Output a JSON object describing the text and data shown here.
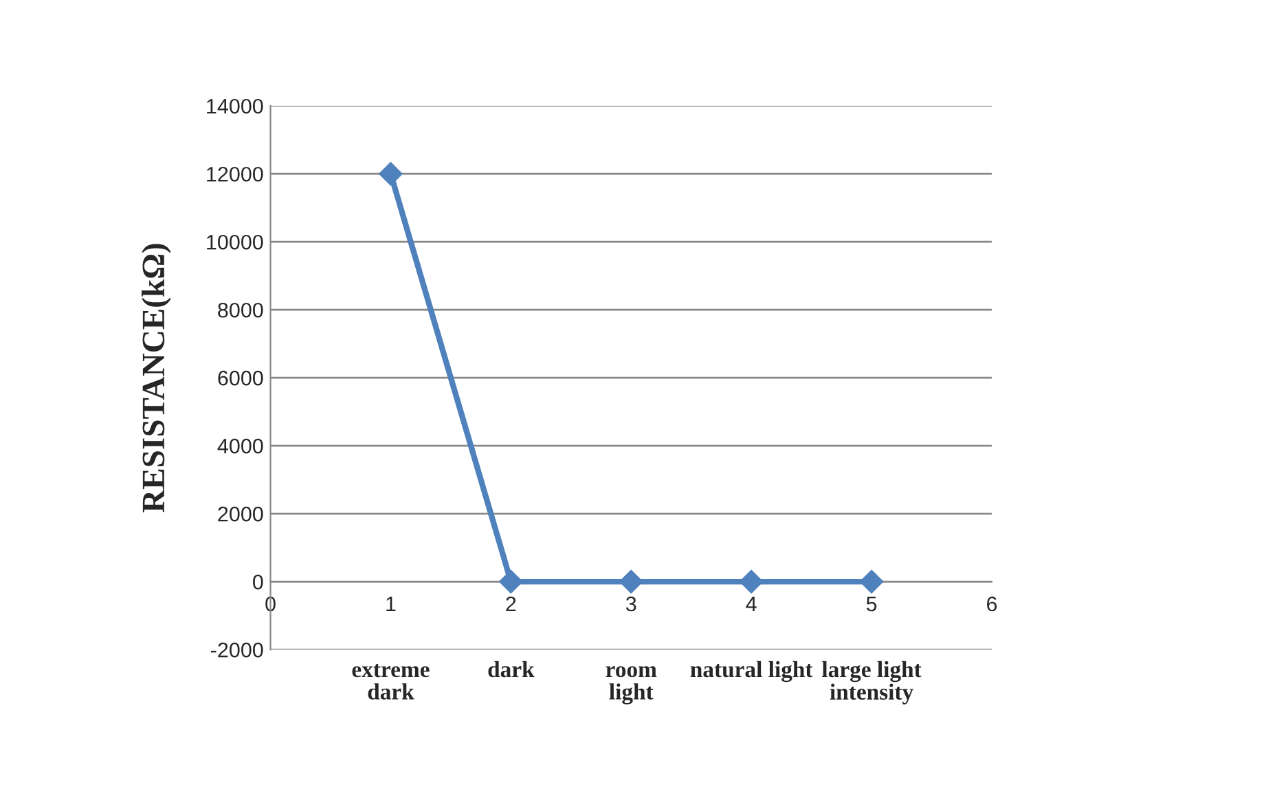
{
  "chart_data": {
    "type": "line",
    "ylabel": "RESISTANCE(kΩ)",
    "x": [
      1,
      2,
      3,
      4,
      5
    ],
    "series": [
      {
        "color": "#4f81bd",
        "values": [
          12000,
          0,
          0,
          0,
          0
        ]
      }
    ],
    "xlim": [
      0,
      6
    ],
    "xticks": [
      0,
      1,
      2,
      3,
      4,
      5,
      6
    ],
    "ylim": [
      -2000,
      14000
    ],
    "yticks": [
      -2000,
      0,
      2000,
      4000,
      6000,
      8000,
      10000,
      12000,
      14000
    ],
    "grid": "y",
    "marker": "diamond",
    "line_style": "solid",
    "legend": false,
    "annotations": [
      "extreme\ndark",
      "dark",
      "room\nlight",
      "natural light",
      "large light\nintensity"
    ]
  }
}
